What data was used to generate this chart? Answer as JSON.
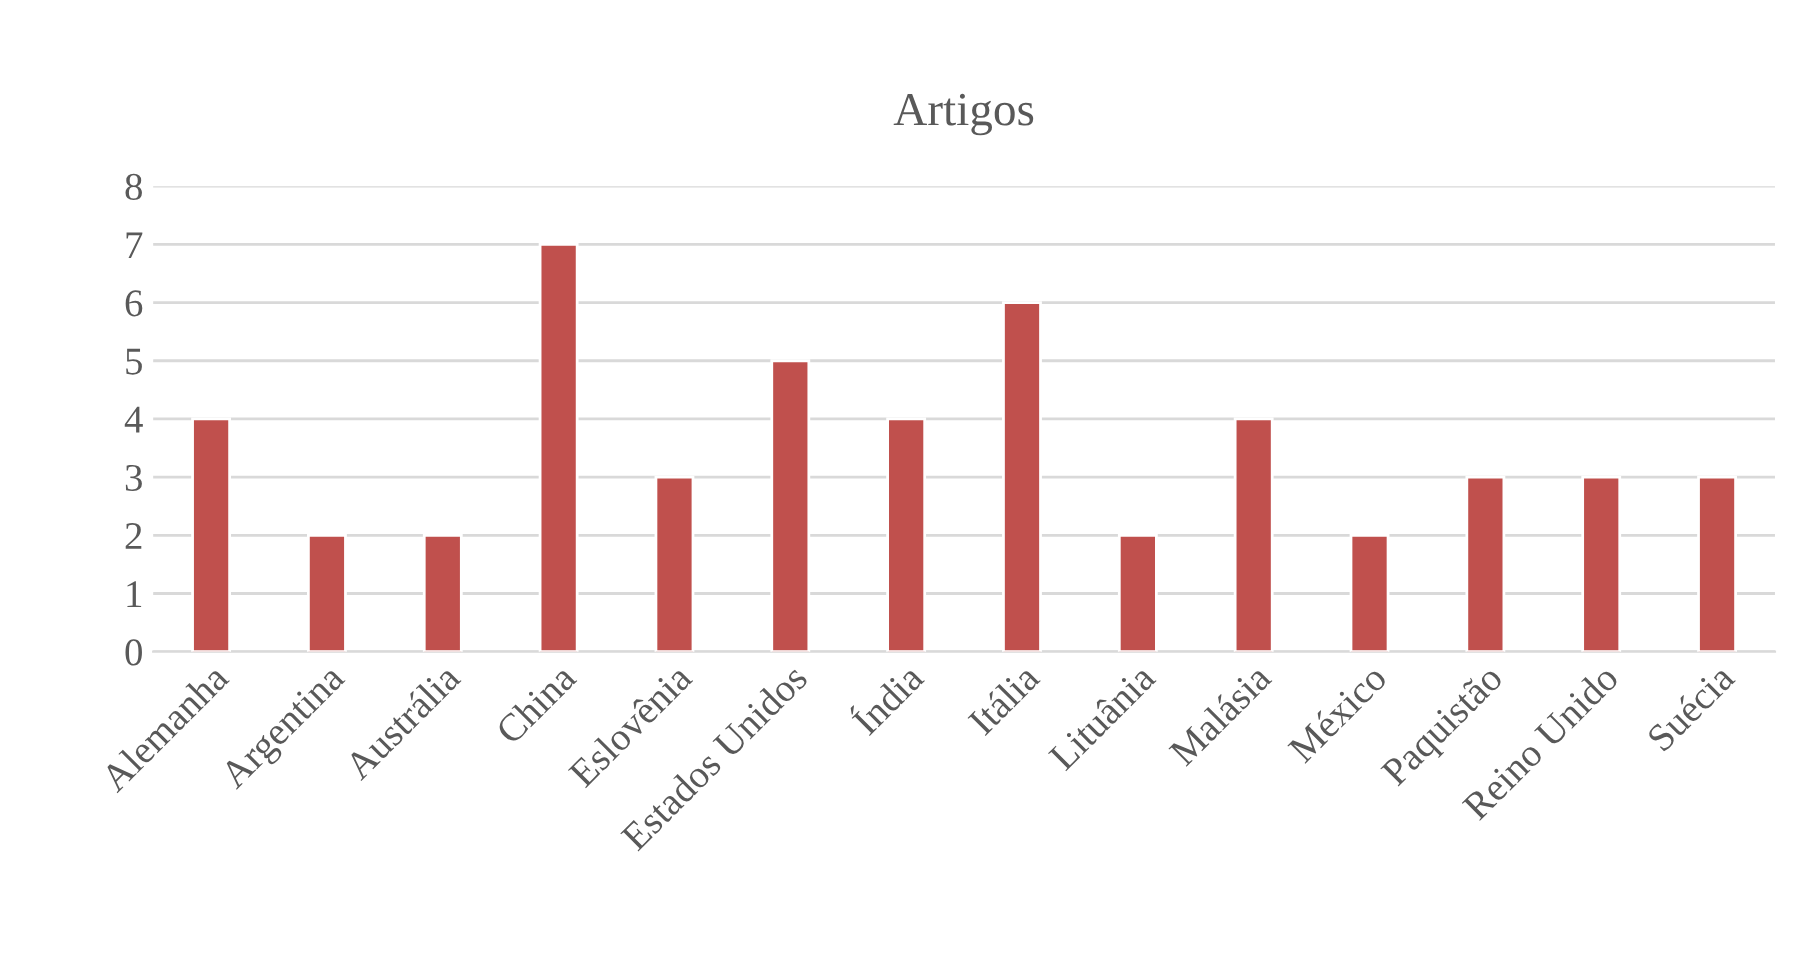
{
  "chart_data": {
    "type": "bar",
    "title": "Artigos",
    "categories": [
      "Alemanha",
      "Argentina",
      "Austrália",
      "China",
      "Eslovênia",
      "Estados Unidos",
      "Índia",
      "Itália",
      "Lituânia",
      "Malásia",
      "México",
      "Paquistão",
      "Reino Unido",
      "Suécia"
    ],
    "values": [
      4,
      2,
      2,
      7,
      3,
      5,
      4,
      6,
      2,
      4,
      2,
      3,
      3,
      3
    ],
    "color": "#c0504d",
    "ylim": [
      0,
      8
    ],
    "yticks": [
      0,
      1,
      2,
      3,
      4,
      5,
      6,
      7,
      8
    ],
    "grid": "y"
  }
}
